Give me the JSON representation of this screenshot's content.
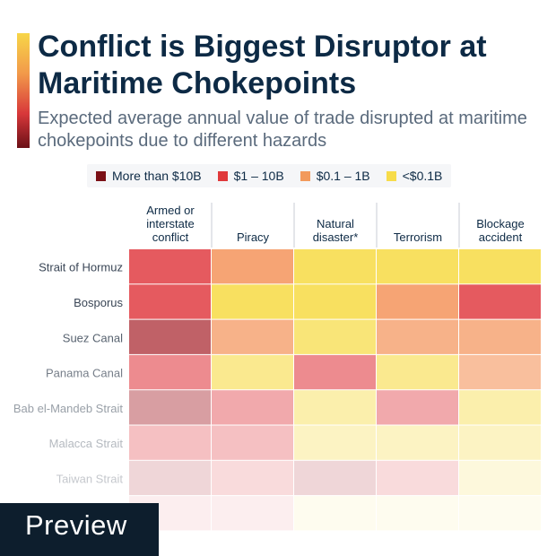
{
  "title": "Conflict is Biggest Disruptor at Maritime Chokepoints",
  "subtitle": "Expected average annual value of trade disrupted at maritime chokepoints due to different hazards",
  "legend": [
    {
      "label": "More than $10B",
      "color": "#7b1016"
    },
    {
      "label": "$1 – 10B",
      "color": "#e0393b"
    },
    {
      "label": "$0.1 – 1B",
      "color": "#f29a5c"
    },
    {
      "label": "<$0.1B",
      "color": "#f7dc4a"
    }
  ],
  "preview_label": "Preview",
  "chart_data": {
    "type": "heatmap",
    "columns": [
      {
        "lines": [
          "Armed or",
          "interstate",
          "conflict"
        ]
      },
      {
        "lines": [
          "Piracy"
        ]
      },
      {
        "lines": [
          "Natural",
          "disaster*"
        ]
      },
      {
        "lines": [
          "Terrorism"
        ]
      },
      {
        "lines": [
          "Blockage",
          "accident"
        ]
      }
    ],
    "rows": [
      "Strait of Hormuz",
      "Bosporus",
      "Suez Canal",
      "Panama Canal",
      "Bab el-Mandeb Strait",
      "Malacca Strait",
      "Taiwan Strait",
      ""
    ],
    "values": [
      [
        "$1 – 10B",
        "$0.1 – 1B",
        "<$0.1B",
        "<$0.1B",
        "<$0.1B"
      ],
      [
        "$1 – 10B",
        "<$0.1B",
        "<$0.1B",
        "$0.1 – 1B",
        "$1 – 10B"
      ],
      [
        "More than $10B",
        "$0.1 – 1B",
        "<$0.1B",
        "$0.1 – 1B",
        "$0.1 – 1B"
      ],
      [
        "$1 – 10B",
        "<$0.1B",
        "$1 – 10B",
        "<$0.1B",
        "$0.1 – 1B"
      ],
      [
        "More than $10B",
        "$1 – 10B",
        "<$0.1B",
        "$1 – 10B",
        "<$0.1B"
      ],
      [
        "$1 – 10B",
        "$1 – 10B",
        "<$0.1B",
        "<$0.1B",
        "<$0.1B"
      ],
      [
        "More than $10B",
        "$1 – 10B",
        "More than $10B",
        "$1 – 10B",
        "<$0.1B"
      ],
      [
        "$1 – 10B",
        "$1 – 10B",
        "<$0.1B",
        "<$0.1B",
        "<$0.1B"
      ]
    ],
    "row_opacity": [
      1,
      1,
      0.85,
      0.7,
      0.52,
      0.38,
      0.22,
      0.1
    ]
  }
}
